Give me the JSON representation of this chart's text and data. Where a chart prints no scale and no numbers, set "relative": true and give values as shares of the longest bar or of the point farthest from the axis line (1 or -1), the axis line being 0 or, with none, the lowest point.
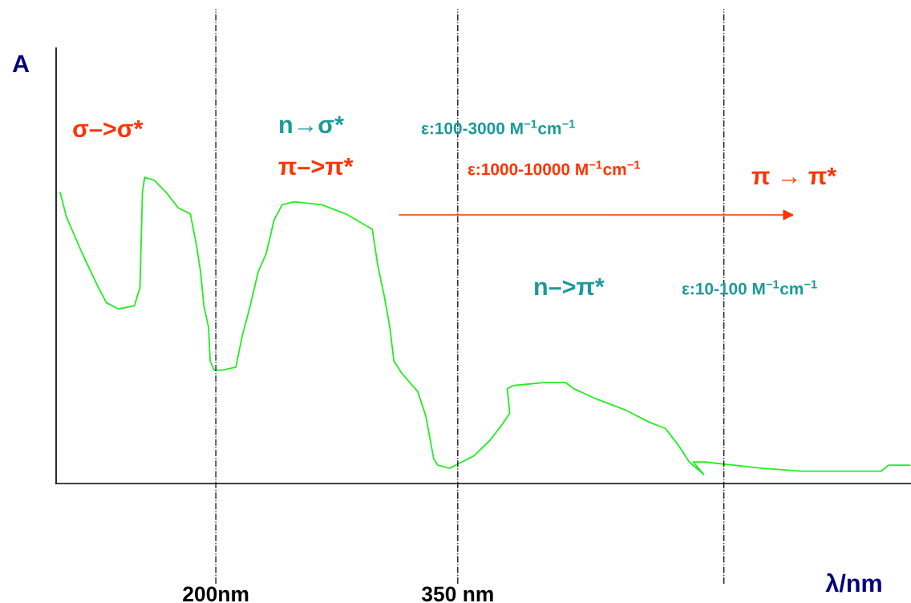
{
  "chart_data": {
    "type": "line",
    "relative": true,
    "ylabel": "A",
    "xlabel": "λ/nm",
    "xlim": [
      101,
      631
    ],
    "xticks": [
      {
        "value": 200,
        "label": "200nm"
      },
      {
        "value": 350,
        "label": "350 nm"
      }
    ],
    "tick_labels": "x",
    "marker": "none",
    "line_style": "solid",
    "series": [
      {
        "color": "#22ee22",
        "x": [
          103.5,
          107.4,
          117.3,
          127.2,
          132.2,
          139.6,
          149.5,
          153.0,
          154.5,
          155.9,
          161.9,
          169.3,
          176.7,
          184.2,
          187.6,
          190.6,
          192.6,
          195.5,
          196.5,
          199.0,
          204.0,
          212.4,
          216.3,
          221.3,
          226.2,
          231.2,
          236.1,
          241.1,
          248.5,
          265.8,
          280.7,
          297.0,
          300.5,
          304.5,
          307.9,
          310.4,
          315.3,
          325.2,
          330.2,
          335.1,
          337.6,
          345.0,
          352.5,
          359.9,
          369.8,
          377.2,
          382.2,
          380.7,
          384.7,
          404.5,
          416.8,
          421.8,
          434.2,
          454.0,
          468.8,
          478.7,
          486.1,
          493.6,
          502.5,
          496.0,
          503.5,
          538.1,
          562.9,
          592.6,
          612.4,
          617.3,
          630.2
        ],
        "values": [
          0.95,
          0.87,
          0.75,
          0.64,
          0.59,
          0.57,
          0.58,
          0.64,
          0.95,
          1.0,
          0.99,
          0.95,
          0.9,
          0.88,
          0.79,
          0.69,
          0.58,
          0.51,
          0.4,
          0.37,
          0.37,
          0.38,
          0.48,
          0.58,
          0.69,
          0.75,
          0.86,
          0.91,
          0.92,
          0.91,
          0.88,
          0.83,
          0.71,
          0.61,
          0.51,
          0.4,
          0.36,
          0.3,
          0.22,
          0.08,
          0.06,
          0.05,
          0.07,
          0.09,
          0.14,
          0.19,
          0.23,
          0.31,
          0.32,
          0.33,
          0.33,
          0.31,
          0.28,
          0.24,
          0.2,
          0.18,
          0.13,
          0.07,
          0.03,
          0.07,
          0.07,
          0.05,
          0.04,
          0.04,
          0.04,
          0.06,
          0.06
        ]
      }
    ],
    "ref_lines": [
      {
        "axis": "x",
        "value": 200,
        "color": "#000000",
        "line_style": "dashdot"
      },
      {
        "axis": "x",
        "value": 350,
        "color": "#000000",
        "line_style": "dashdot"
      },
      {
        "axis": "x",
        "value": 515,
        "color": "#000000",
        "line_style": "dashdot"
      }
    ],
    "annotations": [
      "σ–>σ*",
      "n→σ*",
      "ε:100-3000 M$^{−1}$cm$^{−1}$",
      "π–>π*",
      "ε:1000-10000 M$^{−1}$cm$^{−1}$",
      "π → π*",
      "n–>π*",
      "ε:10-100 M$^{−1}$cm$^{−1}$"
    ]
  }
}
